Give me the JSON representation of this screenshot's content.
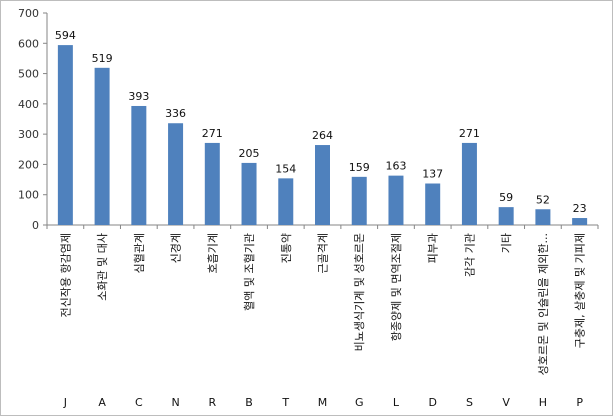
{
  "chart_data": {
    "type": "bar",
    "title": "",
    "xlabel": "",
    "ylabel": "",
    "ylim": [
      0,
      700
    ],
    "yticks": [
      0,
      100,
      200,
      300,
      400,
      500,
      600,
      700
    ],
    "grid": false,
    "legend": "none",
    "bar_color": "#4F81BD",
    "categories": [
      "전신작용 항감염제",
      "소화관 및 대사",
      "심혈관계",
      "신경계",
      "호흡기계",
      "혈액 및 조혈기관",
      "진통약",
      "근골격계",
      "비뇨생식기계 및 성호르몬",
      "항종양제 및 면역조절제",
      "피부과",
      "감각 기관",
      "기타",
      "성호르몬 및 인슐린을 제외한...",
      "구충제, 살충제 및 기피제"
    ],
    "codes": [
      "J",
      "A",
      "C",
      "N",
      "R",
      "B",
      "T",
      "M",
      "G",
      "L",
      "D",
      "S",
      "V",
      "H",
      "P"
    ],
    "values": [
      594,
      519,
      393,
      336,
      271,
      205,
      154,
      264,
      159,
      163,
      137,
      271,
      59,
      52,
      23
    ]
  }
}
